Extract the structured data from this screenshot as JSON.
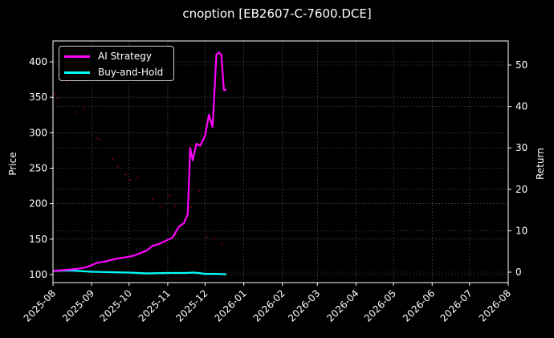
{
  "title": "cnoption [EB2607-C-7600.DCE]",
  "legend": {
    "items": [
      {
        "label": "AI Strategy",
        "color": "#ff00ff"
      },
      {
        "label": "Buy-and-Hold",
        "color": "#00ffff"
      }
    ]
  },
  "axes": {
    "left_label": "Price",
    "right_label": "Return",
    "left_ticks": [
      "100",
      "150",
      "200",
      "250",
      "300",
      "350",
      "400"
    ],
    "right_ticks": [
      "0",
      "10",
      "20",
      "30",
      "40",
      "50"
    ],
    "x_ticks": [
      "2025-08",
      "2025-09",
      "2025-10",
      "2025-11",
      "2025-12",
      "2026-01",
      "2026-02",
      "2026-03",
      "2026-04",
      "2026-05",
      "2026-06",
      "2026-07",
      "2026-08"
    ]
  },
  "chart_data": {
    "type": "line",
    "title": "cnoption [EB2607-C-7600.DCE]",
    "xlabel": "",
    "ylabel": "Price",
    "y2label": "Return",
    "ylim": [
      90,
      430
    ],
    "y2lim": [
      -1.2,
      55
    ],
    "xlim": [
      "2025-08-01",
      "2026-08-01"
    ],
    "grid": true,
    "legend_position": "upper left",
    "x_ticks": [
      "2025-08",
      "2025-09",
      "2025-10",
      "2025-11",
      "2025-12",
      "2026-01",
      "2026-02",
      "2026-03",
      "2026-04",
      "2026-05",
      "2026-06",
      "2026-07",
      "2026-08"
    ],
    "series": [
      {
        "name": "AI Strategy",
        "axis": "right",
        "color": "#ff00ff",
        "x": [
          "2025-08-01",
          "2025-08-10",
          "2025-08-20",
          "2025-08-28",
          "2025-09-05",
          "2025-09-12",
          "2025-09-20",
          "2025-09-28",
          "2025-10-05",
          "2025-10-10",
          "2025-10-15",
          "2025-10-20",
          "2025-10-25",
          "2025-11-01",
          "2025-11-05",
          "2025-11-10",
          "2025-11-14",
          "2025-11-17",
          "2025-11-19",
          "2025-11-21",
          "2025-11-24",
          "2025-11-27",
          "2025-12-01",
          "2025-12-04",
          "2025-12-07",
          "2025-12-10",
          "2025-12-12",
          "2025-12-14",
          "2025-12-16",
          "2025-12-18"
        ],
        "values": [
          0.3,
          0.5,
          0.8,
          1.2,
          2.2,
          2.6,
          3.2,
          3.6,
          4.0,
          4.6,
          5.2,
          6.4,
          6.8,
          7.8,
          8.4,
          11.0,
          11.8,
          14.0,
          30.0,
          27.0,
          31.0,
          30.5,
          33.0,
          38.0,
          35.0,
          52.5,
          53.0,
          52.5,
          44.0,
          44.0
        ]
      },
      {
        "name": "Buy-and-Hold",
        "axis": "right",
        "color": "#00ffff",
        "x": [
          "2025-08-01",
          "2025-08-15",
          "2025-09-01",
          "2025-09-15",
          "2025-10-01",
          "2025-10-15",
          "2025-11-01",
          "2025-11-15",
          "2025-11-22",
          "2025-12-01",
          "2025-12-10",
          "2025-12-18"
        ],
        "values": [
          0.3,
          0.4,
          0.1,
          0.0,
          -0.1,
          -0.3,
          -0.2,
          -0.2,
          -0.1,
          -0.4,
          -0.4,
          -0.5
        ]
      },
      {
        "name": "Price",
        "axis": "left",
        "type": "scatter",
        "color": "#8b0000",
        "x": [
          "2025-08-03",
          "2025-08-05",
          "2025-08-12",
          "2025-08-20",
          "2025-08-26",
          "2025-09-05",
          "2025-09-08",
          "2025-09-18",
          "2025-09-22",
          "2025-09-28",
          "2025-10-02",
          "2025-10-08",
          "2025-10-20",
          "2025-10-26",
          "2025-11-03",
          "2025-11-07",
          "2025-11-20",
          "2025-11-26",
          "2025-12-02",
          "2025-12-08",
          "2025-12-14"
        ],
        "values": [
          355,
          348,
          371,
          329,
          333,
          292,
          290,
          263,
          252,
          241,
          234,
          237,
          206,
          196,
          212,
          197,
          195,
          218,
          153,
          151,
          144
        ]
      }
    ]
  }
}
